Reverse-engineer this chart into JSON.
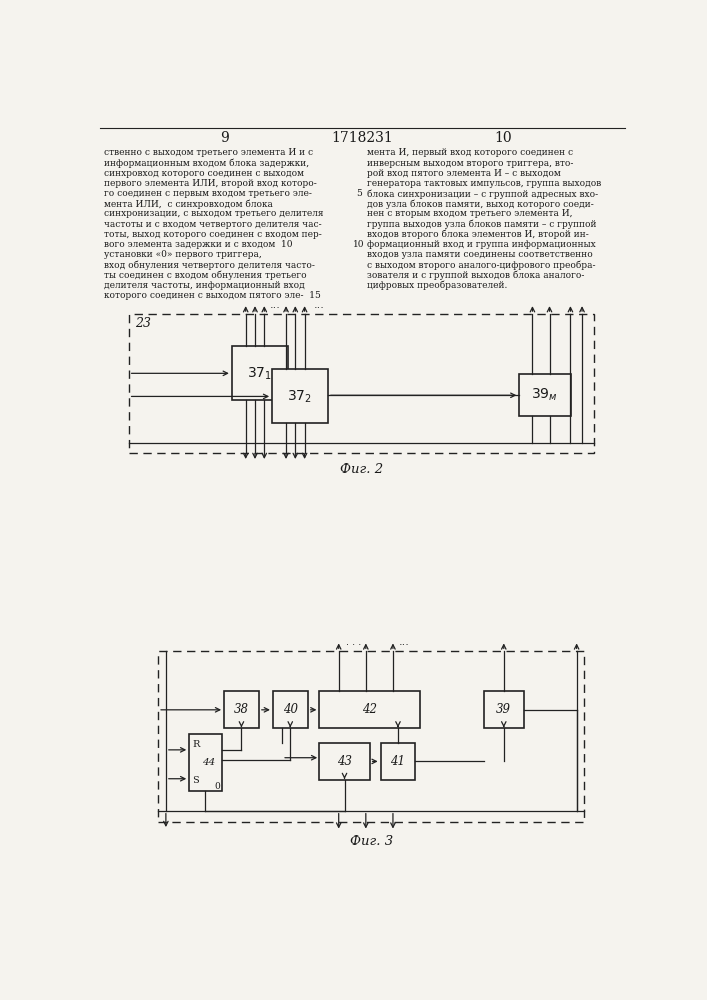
{
  "page_num_left": "9",
  "page_num_right": "10",
  "patent_num": "1718231",
  "background_color": "#f5f3ee",
  "text_color": "#1a1a1a",
  "line_color": "#222222",
  "text_left_col": [
    "ственно с выходом третьего элемента И и с",
    "информационным входом блока задержки,",
    "синхровход которого соединен с выходом",
    "первого элемента ИЛИ, второй вход которо-",
    "го соединен с первым входом третьего эле-",
    "мента ИЛИ,  с синхровходом блока",
    "синхронизации, с выходом третьего делителя",
    "частоты и с входом четвертого делителя час-",
    "тоты, выход которого соединен с входом пер-",
    "вого элемента задержки и с входом  10",
    "установки «0» первого триггера,",
    "вход обнуления четвертого делителя часто-",
    "ты соединен с входом обнуления третьего",
    "делителя частоты, информационный вход",
    "которого соединен с выходом пятого эле-  15"
  ],
  "text_right_col": [
    "мента И, первый вход которого соединен с",
    "инверсным выходом второго триггера, вто-",
    "рой вход пятого элемента И – с выходом",
    "генератора тактовых импульсов, группа выходов",
    "блока синхронизации – с группой адресных вхо-",
    "дов узла блоков памяти, выход которого соеди-",
    "нен с вторым входом третьего элемента И,",
    "группа выходов узла блоков памяти – с группой",
    "входов второго блока элементов И, второй ин-",
    "формационный вход и группа информационных",
    "входов узла памяти соединены соответственно",
    "с выходом второго аналого-цифрового преобра-",
    "зователя и с группой выходов блока аналого-",
    "цифровых преобразователей."
  ],
  "fig2_label": "Фиг. 2",
  "fig3_label": "Фиг. 3"
}
